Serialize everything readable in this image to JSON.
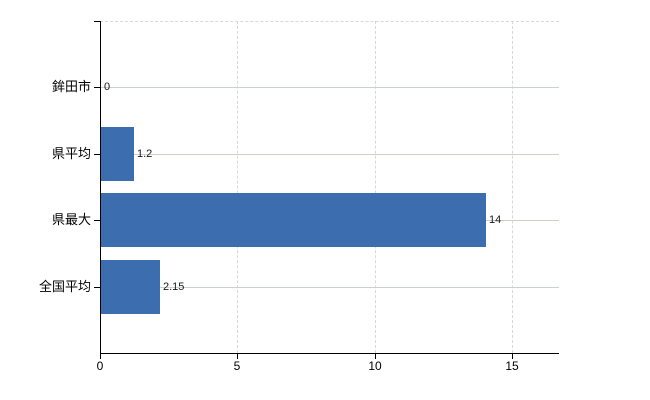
{
  "chart_data": {
    "type": "bar",
    "orientation": "horizontal",
    "title": "",
    "xlabel": "",
    "ylabel": "",
    "categories": [
      "鉾田市",
      "県平均",
      "県最大",
      "全国平均"
    ],
    "values": [
      0,
      1.2,
      14,
      2.15
    ],
    "value_labels": [
      "0",
      "1.2",
      "14",
      "2.15"
    ],
    "x_tick_labels": [
      "0",
      "5",
      "10",
      "15"
    ],
    "x_tick_values": [
      0,
      5,
      10,
      15
    ],
    "xlim": [
      0,
      16.7
    ],
    "legend_position": "none",
    "grid": {
      "horizontal": "solid",
      "vertical": "dashed",
      "plot_top_border": "dashed"
    },
    "colors": {
      "bar": "#3c6daf",
      "grid_horizontal": "#c9d3c9",
      "grid_vertical": "#d8d8d8",
      "axis": "#000000",
      "label_text": "#000000",
      "value_text": "#1a1a1a",
      "background": "#ffffff"
    }
  }
}
